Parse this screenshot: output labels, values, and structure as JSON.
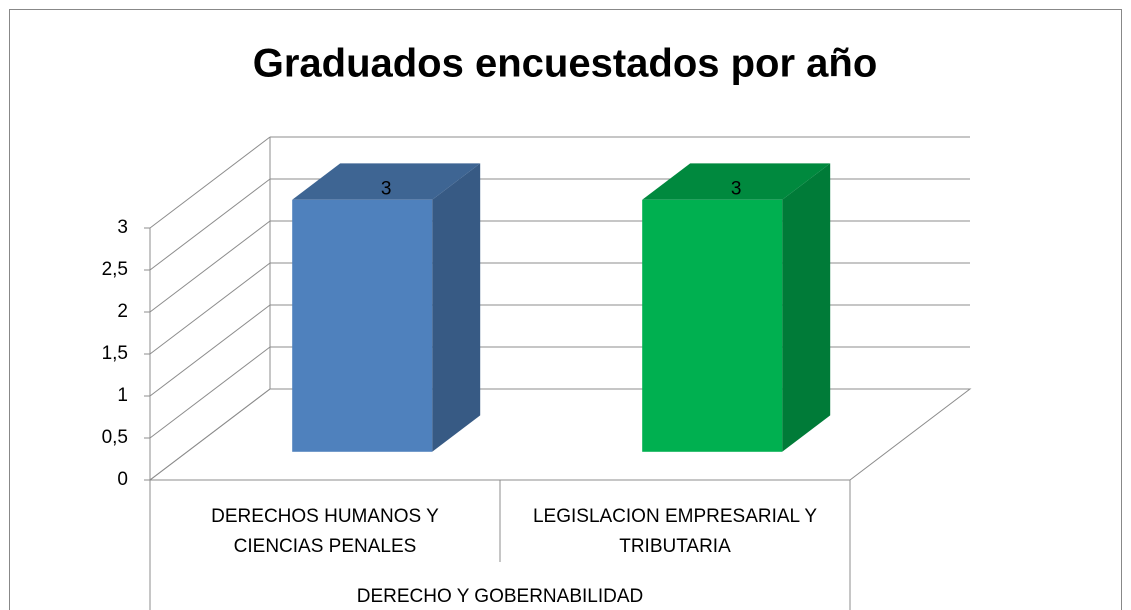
{
  "chart_data": {
    "type": "bar3d",
    "title": "Graduados encuestados por año",
    "categories": [
      "DERECHOS HUMANOS Y CIENCIAS PENALES",
      "LEGISLACION EMPRESARIAL Y TRIBUTARIA"
    ],
    "group": "DERECHO Y GOBERNABILIDAD",
    "values": [
      3,
      3
    ],
    "colors": [
      "#4f81bd",
      "#00b050"
    ],
    "ylim": [
      0,
      3
    ],
    "yticks": [
      0,
      {
        "value": 0.5,
        "label": "0,5"
      },
      1,
      {
        "value": 1.5,
        "label": "1,5"
      },
      2,
      {
        "value": 2.5,
        "label": "2,5"
      },
      3
    ],
    "grid": true
  }
}
